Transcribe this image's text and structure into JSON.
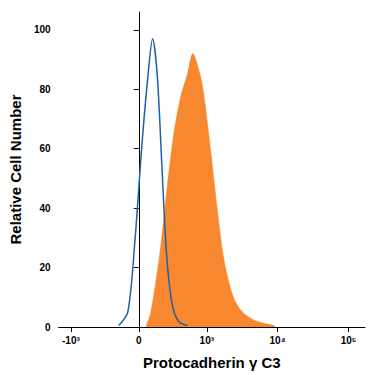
{
  "chart_data": {
    "type": "line",
    "xlabel": "Protocadherin γ C3",
    "ylabel": "Relative Cell Number",
    "xlim": [
      -1500,
      170000
    ],
    "xticks": [
      {
        "value": -1000,
        "label": "-10³"
      },
      0,
      {
        "value": 1000,
        "label": "10³"
      },
      {
        "value": 10000,
        "label": "10⁴"
      },
      {
        "value": 100000,
        "label": "10⁵"
      }
    ],
    "ylim": [
      0,
      106
    ],
    "yticks": [
      0,
      20,
      40,
      60,
      80,
      100
    ],
    "grid": false,
    "series": [
      {
        "type": "area",
        "color": "#f7882f",
        "x": [
          54,
          89,
          165,
          228,
          311,
          411,
          515,
          625,
          735,
          880,
          1127,
          1436,
          1774,
          2386,
          3214,
          5018,
          9094
        ],
        "values": [
          0.5,
          5,
          25,
          45,
          65,
          78,
          85,
          92,
          88,
          80,
          60,
          38,
          22,
          10,
          5,
          2,
          0.5
        ]
      },
      {
        "type": "line",
        "color": "#1f5fa8",
        "x": [
          -157,
          -82,
          -27,
          20,
          68,
          103,
          141,
          182,
          228,
          289,
          371,
          518
        ],
        "values": [
          0.5,
          5,
          30,
          60,
          85,
          97,
          85,
          55,
          25,
          8,
          2,
          0.5
        ]
      }
    ]
  }
}
